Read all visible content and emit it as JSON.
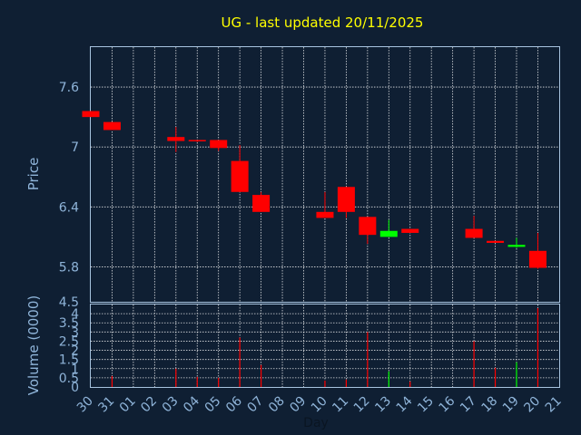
{
  "chart_data": [
    {
      "type": "candlestick",
      "title": "UG - last updated 20/11/2025",
      "ylabel": "Price",
      "ylim": [
        5.45,
        8.0
      ],
      "yticks": [
        "7.6",
        "7",
        "6.4",
        "5.8"
      ],
      "grid": true,
      "colors": {
        "up": "#00ff00",
        "down": "#ff0000",
        "title": "#ffff00",
        "axis_text": "#8fb4d9",
        "grid": "#ffffff"
      },
      "candles": [
        {
          "day": "30",
          "open": 7.36,
          "close": 7.3,
          "high": 7.36,
          "low": 7.3
        },
        {
          "day": "31",
          "open": 7.25,
          "close": 7.17,
          "high": 7.25,
          "low": 7.17
        },
        {
          "day": "03",
          "open": 7.1,
          "close": 7.06,
          "high": 7.2,
          "low": 6.95
        },
        {
          "day": "04",
          "open": 7.07,
          "close": 7.06,
          "high": 7.07,
          "low": 7.05
        },
        {
          "day": "05",
          "open": 7.07,
          "close": 6.99,
          "high": 7.07,
          "low": 6.96
        },
        {
          "day": "06",
          "open": 6.86,
          "close": 6.55,
          "high": 7.02,
          "low": 6.55
        },
        {
          "day": "07",
          "open": 6.52,
          "close": 6.35,
          "high": 6.55,
          "low": 6.35
        },
        {
          "day": "10",
          "open": 6.35,
          "close": 6.29,
          "high": 6.55,
          "low": 6.29
        },
        {
          "day": "11",
          "open": 6.6,
          "close": 6.35,
          "high": 6.6,
          "low": 6.29
        },
        {
          "day": "12",
          "open": 6.3,
          "close": 6.12,
          "high": 6.3,
          "low": 6.03
        },
        {
          "day": "13",
          "open": 6.1,
          "close": 6.16,
          "high": 6.27,
          "low": 6.1
        },
        {
          "day": "14",
          "open": 6.18,
          "close": 6.14,
          "high": 6.18,
          "low": 6.14
        },
        {
          "day": "17",
          "open": 6.18,
          "close": 6.09,
          "high": 6.31,
          "low": 6.09
        },
        {
          "day": "18",
          "open": 6.06,
          "close": 6.04,
          "high": 6.06,
          "low": 6.04
        },
        {
          "day": "19",
          "open": 6.0,
          "close": 6.02,
          "high": 6.09,
          "low": 5.99
        },
        {
          "day": "20",
          "open": 5.96,
          "close": 5.79,
          "high": 6.14,
          "low": 5.78
        }
      ]
    },
    {
      "type": "bar",
      "ylabel": "Volume (0000)",
      "xlabel": "Day",
      "ylim": [
        0,
        4.5
      ],
      "yticks": [
        "4.5",
        "4",
        "3.5",
        "3",
        "2.5",
        "2",
        "1.5",
        "1",
        "0.5",
        "0"
      ],
      "categories": [
        "30",
        "31",
        "01",
        "02",
        "03",
        "04",
        "05",
        "06",
        "07",
        "08",
        "09",
        "10",
        "11",
        "12",
        "13",
        "14",
        "15",
        "16",
        "17",
        "18",
        "19",
        "20",
        "21"
      ],
      "values": [
        0,
        0.6,
        0,
        0,
        1.0,
        0.55,
        0.5,
        2.7,
        1.2,
        0,
        0,
        0.35,
        0.4,
        3.0,
        0.85,
        0.3,
        0,
        0,
        2.5,
        1.05,
        1.35,
        4.3,
        0
      ],
      "bar_colors": [
        "",
        "#ff0000",
        "",
        "",
        "#ff0000",
        "#ff0000",
        "#ff0000",
        "#ff0000",
        "#ff0000",
        "",
        "",
        "#ff0000",
        "#ff0000",
        "#ff0000",
        "#00ff00",
        "#ff0000",
        "",
        "",
        "#ff0000",
        "#ff0000",
        "#00ff00",
        "#ff0000",
        ""
      ]
    }
  ]
}
